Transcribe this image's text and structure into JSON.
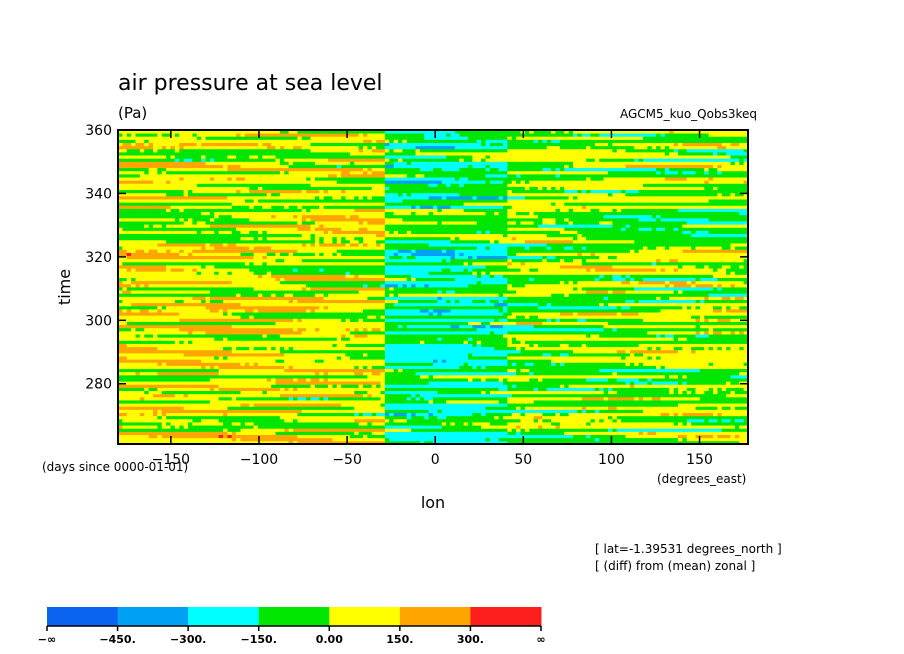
{
  "chart_data": {
    "type": "heatmap",
    "title": "air pressure at sea level",
    "units": "(Pa)",
    "dataset": "AGCM5_kuo_Qobs3keq",
    "xlabel": "lon",
    "xunits": "(degrees_east)",
    "ylabel": "time",
    "yunits": "(days since 0000-01-01)",
    "xlim": [
      -180,
      177.5
    ],
    "ylim": [
      261,
      360
    ],
    "xticks": [
      -150,
      -100,
      -50,
      0,
      50,
      100,
      150
    ],
    "yticks": [
      280,
      300,
      320,
      340,
      360
    ],
    "info": [
      "[ lat=-1.39531 degrees_north ]",
      "[ (diff) from (mean) zonal ]"
    ],
    "levels": [
      -450,
      -300,
      -150,
      0,
      150,
      300
    ],
    "colorbar": {
      "labels": [
        "-∞",
        "-450.",
        "-300.",
        "-150.",
        "0.00",
        "150.",
        "300.",
        "∞"
      ],
      "colors": [
        "#0a64f0",
        "#00a0f5",
        "#00ffff",
        "#00e600",
        "#ffff00",
        "#ffa500",
        "#ff1e1e"
      ]
    },
    "structure": [
      {
        "lon_range": [
          -180,
          -30
        ],
        "dominant": "0 to 150",
        "also": [
          "-150 to 0",
          "150 to 300"
        ]
      },
      {
        "lon_range": [
          -30,
          40
        ],
        "dominant": "-150 to 0",
        "also": [
          "-300 to -150"
        ]
      },
      {
        "lon_range": [
          40,
          177.5
        ],
        "dominant": "-150 to 0 / 0 to 150 bands",
        "also": [
          "150 to 300"
        ]
      }
    ]
  }
}
